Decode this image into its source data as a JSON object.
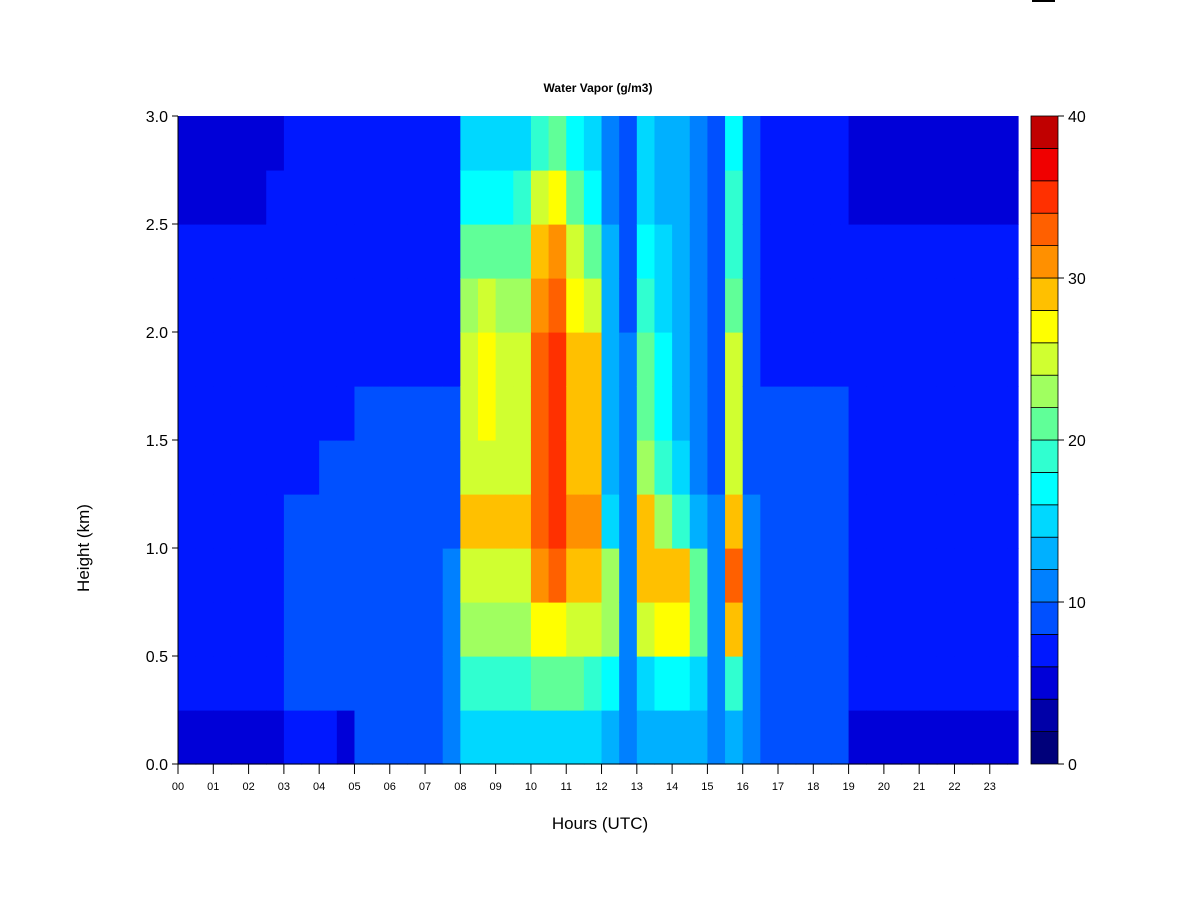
{
  "chart_data": {
    "type": "heatmap",
    "title": "Water Vapor (g/m3)",
    "xlabel": "Hours (UTC)",
    "ylabel": "Height (km)",
    "xlim": [
      0,
      23.8
    ],
    "ylim": [
      0,
      3.0
    ],
    "x_ticks": [
      "00",
      "01",
      "02",
      "03",
      "04",
      "05",
      "06",
      "07",
      "08",
      "09",
      "10",
      "11",
      "12",
      "13",
      "14",
      "15",
      "16",
      "17",
      "18",
      "19",
      "20",
      "21",
      "22",
      "23"
    ],
    "y_ticks": [
      "0.0",
      "0.5",
      "1.0",
      "1.5",
      "2.0",
      "2.5",
      "3.0"
    ],
    "colorbar": {
      "ticks": [
        "0",
        "10",
        "20",
        "30",
        "40"
      ],
      "range": [
        0,
        40
      ],
      "levels": [
        0,
        2,
        4,
        6,
        8,
        10,
        12,
        14,
        16,
        18,
        20,
        22,
        24,
        26,
        28,
        30,
        32,
        34,
        36,
        38,
        40
      ],
      "colors": [
        "#00007a",
        "#0000a8",
        "#0000d8",
        "#0018ff",
        "#0050ff",
        "#0080ff",
        "#00b0ff",
        "#00d8ff",
        "#00ffff",
        "#30ffd0",
        "#60ff98",
        "#a0ff60",
        "#d0ff30",
        "#ffff00",
        "#ffc000",
        "#ff9000",
        "#ff6000",
        "#ff3000",
        "#f00000",
        "#c00000",
        "#800000"
      ]
    },
    "x_step_hours": 0.5,
    "y_step_km": 0.25,
    "z_columns": [
      [
        5,
        7,
        7,
        7,
        7,
        7,
        7,
        7,
        7,
        7,
        5,
        5
      ],
      [
        5,
        7,
        7,
        7,
        7,
        7,
        7,
        7,
        7,
        7,
        5,
        5
      ],
      [
        5,
        7,
        7,
        7,
        7,
        7,
        7,
        7,
        7,
        7,
        5,
        5
      ],
      [
        5,
        7,
        7,
        7,
        7,
        7,
        7,
        7,
        7,
        7,
        5,
        5
      ],
      [
        5,
        7,
        7,
        7,
        7,
        7,
        7,
        7,
        7,
        7,
        5,
        5
      ],
      [
        5,
        7,
        7,
        7,
        7,
        7,
        7,
        7,
        7,
        7,
        7,
        5
      ],
      [
        7,
        9,
        9,
        9,
        9,
        7,
        7,
        7,
        7,
        7,
        7,
        7
      ],
      [
        7,
        9,
        9,
        9,
        9,
        7,
        7,
        7,
        7,
        7,
        7,
        7
      ],
      [
        7,
        9,
        9,
        9,
        9,
        9,
        7,
        7,
        7,
        7,
        7,
        7
      ],
      [
        5,
        9,
        9,
        9,
        9,
        9,
        7,
        7,
        7,
        7,
        7,
        7
      ],
      [
        9,
        9,
        9,
        9,
        9,
        9,
        9,
        7,
        7,
        7,
        7,
        7
      ],
      [
        9,
        9,
        9,
        9,
        9,
        9,
        9,
        7,
        7,
        7,
        7,
        7
      ],
      [
        9,
        9,
        9,
        9,
        9,
        9,
        9,
        7,
        7,
        7,
        7,
        7
      ],
      [
        9,
        9,
        9,
        9,
        9,
        9,
        9,
        7,
        7,
        7,
        7,
        7
      ],
      [
        9,
        9,
        9,
        9,
        9,
        9,
        9,
        7,
        7,
        7,
        7,
        7
      ],
      [
        11,
        11,
        11,
        11,
        9,
        9,
        9,
        7,
        7,
        7,
        7,
        7
      ],
      [
        15,
        19,
        23,
        25,
        29,
        25,
        25,
        25,
        23,
        21,
        17,
        15
      ],
      [
        15,
        19,
        23,
        25,
        29,
        25,
        27,
        27,
        25,
        21,
        17,
        15
      ],
      [
        15,
        19,
        23,
        25,
        29,
        25,
        25,
        25,
        23,
        21,
        17,
        15
      ],
      [
        15,
        19,
        23,
        25,
        29,
        25,
        25,
        25,
        23,
        21,
        19,
        15
      ],
      [
        15,
        21,
        27,
        31,
        33,
        33,
        33,
        33,
        31,
        29,
        25,
        19
      ],
      [
        15,
        21,
        27,
        33,
        35,
        35,
        35,
        35,
        33,
        31,
        27,
        21
      ],
      [
        15,
        21,
        25,
        29,
        31,
        29,
        29,
        29,
        27,
        25,
        21,
        17
      ],
      [
        15,
        19,
        25,
        29,
        31,
        29,
        29,
        29,
        25,
        21,
        17,
        15
      ],
      [
        13,
        17,
        23,
        23,
        15,
        13,
        13,
        13,
        13,
        13,
        11,
        11
      ],
      [
        11,
        11,
        11,
        11,
        11,
        11,
        11,
        11,
        9,
        9,
        9,
        9
      ],
      [
        13,
        15,
        25,
        29,
        29,
        23,
        21,
        21,
        19,
        17,
        15,
        15
      ],
      [
        13,
        17,
        27,
        29,
        23,
        19,
        17,
        17,
        15,
        15,
        13,
        13
      ],
      [
        13,
        17,
        27,
        29,
        19,
        15,
        13,
        13,
        13,
        13,
        13,
        13
      ],
      [
        13,
        15,
        21,
        21,
        13,
        11,
        11,
        11,
        11,
        11,
        11,
        11
      ],
      [
        11,
        11,
        11,
        11,
        11,
        9,
        9,
        9,
        9,
        9,
        9,
        9
      ],
      [
        13,
        19,
        29,
        33,
        29,
        25,
        25,
        25,
        21,
        19,
        19,
        17
      ],
      [
        11,
        11,
        11,
        11,
        11,
        9,
        9,
        9,
        9,
        9,
        9,
        9
      ],
      [
        9,
        9,
        9,
        9,
        9,
        9,
        9,
        7,
        7,
        7,
        7,
        7
      ],
      [
        9,
        9,
        9,
        9,
        9,
        9,
        9,
        7,
        7,
        7,
        7,
        7
      ],
      [
        9,
        9,
        9,
        9,
        9,
        9,
        9,
        7,
        7,
        7,
        7,
        7
      ],
      [
        9,
        9,
        9,
        9,
        9,
        9,
        9,
        7,
        7,
        7,
        7,
        7
      ],
      [
        9,
        9,
        9,
        9,
        9,
        9,
        9,
        7,
        7,
        7,
        7,
        7
      ],
      [
        5,
        7,
        7,
        7,
        7,
        7,
        7,
        7,
        7,
        7,
        5,
        5
      ],
      [
        5,
        7,
        7,
        7,
        7,
        7,
        7,
        7,
        7,
        7,
        5,
        5
      ],
      [
        5,
        7,
        7,
        7,
        7,
        7,
        7,
        7,
        7,
        7,
        5,
        5
      ],
      [
        5,
        7,
        7,
        7,
        7,
        7,
        7,
        7,
        7,
        7,
        5,
        5
      ],
      [
        5,
        7,
        7,
        7,
        7,
        7,
        7,
        7,
        7,
        7,
        5,
        5
      ],
      [
        5,
        7,
        7,
        7,
        7,
        7,
        7,
        7,
        7,
        7,
        5,
        5
      ],
      [
        5,
        7,
        7,
        7,
        7,
        7,
        7,
        7,
        7,
        7,
        5,
        5
      ],
      [
        5,
        7,
        7,
        7,
        7,
        7,
        7,
        7,
        7,
        7,
        5,
        5
      ],
      [
        5,
        7,
        7,
        7,
        7,
        7,
        7,
        7,
        7,
        7,
        5,
        5
      ],
      [
        5,
        7,
        7,
        7,
        7,
        7,
        7,
        7,
        7,
        7,
        5,
        5
      ]
    ]
  }
}
